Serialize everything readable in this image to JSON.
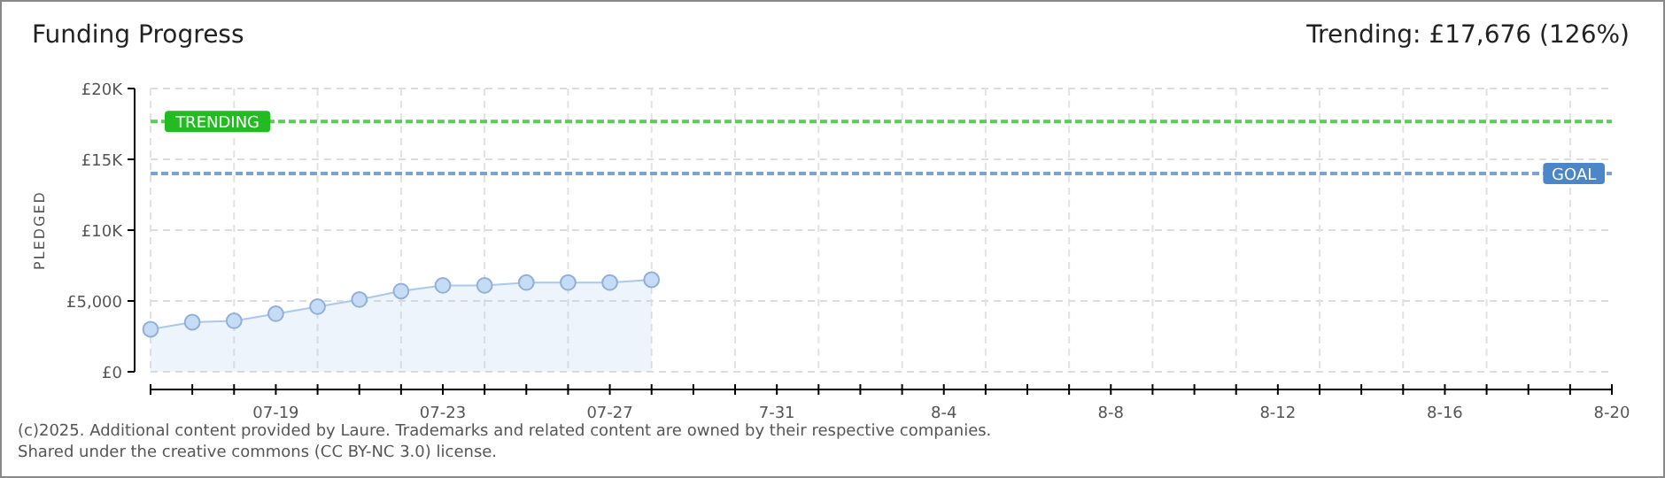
{
  "chart_data": {
    "type": "area",
    "title": "Funding Progress",
    "subtitle": "Trending: £17,676 (126%)",
    "ylabel": "PLEDGED",
    "x": [
      "2025-07-16",
      "2025-07-17",
      "2025-07-18",
      "2025-07-19",
      "2025-07-20",
      "2025-07-21",
      "2025-07-22",
      "2025-07-23",
      "2025-07-24",
      "2025-07-25",
      "2025-07-26",
      "2025-07-27",
      "2025-07-28"
    ],
    "series": [
      {
        "color": "#a9c8ec",
        "values": [
          3000,
          3500,
          3600,
          4100,
          4600,
          5100,
          5700,
          6100,
          6100,
          6300,
          6300,
          6300,
          6500
        ]
      }
    ],
    "xlim": [
      "2025-07-16",
      "2025-08-20"
    ],
    "xticks": [
      {
        "value": "2025-07-19",
        "label": "07-19"
      },
      {
        "value": "2025-07-23",
        "label": "07-23"
      },
      {
        "value": "2025-07-27",
        "label": "07-27"
      },
      {
        "value": "2025-07-31",
        "label": "7-31"
      },
      {
        "value": "2025-08-04",
        "label": "8-4"
      },
      {
        "value": "2025-08-08",
        "label": "8-8"
      },
      {
        "value": "2025-08-12",
        "label": "8-12"
      },
      {
        "value": "2025-08-16",
        "label": "8-16"
      },
      {
        "value": "2025-08-20",
        "label": "8-20"
      }
    ],
    "ylim": [
      0,
      20000
    ],
    "yticks": [
      {
        "value": 0,
        "label": "£0"
      },
      {
        "value": 5000,
        "label": "£5,000"
      },
      {
        "value": 10000,
        "label": "£10K"
      },
      {
        "value": 15000,
        "label": "£15K"
      },
      {
        "value": 20000,
        "label": "£20K"
      }
    ],
    "ref_lines": [
      {
        "axis": "y",
        "value": 17676,
        "label": "TRENDING",
        "color": "#22bb22",
        "line_style": "dashed"
      },
      {
        "axis": "y",
        "value": 14000,
        "label": "GOAL",
        "color": "#4a86c8",
        "line_style": "dashed"
      }
    ],
    "grid": true,
    "marker": "circle",
    "annotations": [
      "(c)2025. Additional content provided by Laure. Trademarks and related content are owned by their respective companies.",
      "Shared under the creative commons (CC BY-NC 3.0) license."
    ]
  }
}
